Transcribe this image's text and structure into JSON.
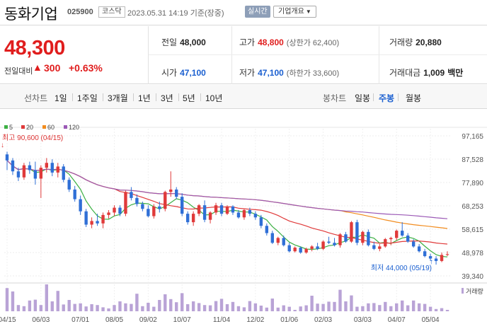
{
  "header": {
    "company_name": "동화기업",
    "code": "025900",
    "market": "코스닥",
    "datetime": "2023.05.31 14:19",
    "basis": "기준(장중)",
    "realtime_label": "실시간",
    "overview_label": "기업개요"
  },
  "quote": {
    "price": "48,300",
    "change_label": "전일대비",
    "change_arrow": "▲",
    "change_value": "300",
    "change_percent": "+0.63%",
    "prev_close_label": "전일",
    "prev_close": "48,000",
    "high_label": "고가",
    "high": "48,800",
    "upper_limit": "(상한가 62,400)",
    "volume_label": "거래량",
    "volume": "20,880",
    "open_label": "시가",
    "open": "47,100",
    "low_label": "저가",
    "low": "47,100",
    "lower_limit": "(하한가 33,600)",
    "amount_label": "거래대금",
    "amount": "1,009",
    "amount_unit": "백만"
  },
  "tabs": {
    "line_title": "선차트",
    "line_periods": [
      "1일",
      "1주일",
      "3개월",
      "1년",
      "3년",
      "5년",
      "10년"
    ],
    "candle_title": "봉차트",
    "candle_periods": [
      "일봉",
      "주봉",
      "월봉"
    ],
    "active_candle": "주봉"
  },
  "chart_data": {
    "type": "candlestick",
    "title": "",
    "legend": [
      {
        "label": "5",
        "color": "#3cb043"
      },
      {
        "label": "20",
        "color": "#e03a3a"
      },
      {
        "label": "60",
        "color": "#f28c1e"
      },
      {
        "label": "120",
        "color": "#9b59b6"
      }
    ],
    "y_ticks": [
      "97,165",
      "87,528",
      "77,890",
      "68,253",
      "58,615",
      "48,978",
      "39,340"
    ],
    "ylim": [
      39340,
      97165
    ],
    "x_ticks": [
      "04/15",
      "06/03",
      "07/01",
      "08/05",
      "09/02",
      "10/07",
      "11/04",
      "12/02",
      "01/06",
      "02/03",
      "03/03",
      "04/07",
      "05/04"
    ],
    "max_annotation": "최고 90,600 (04/15)",
    "min_annotation": "최저 44,000 (05/19)",
    "volume_label": "거래량",
    "up_color": "#e03a3a",
    "down_color": "#2f6fd6",
    "candles": [
      [
        89500,
        90600,
        83000,
        87000
      ],
      [
        87000,
        88000,
        81000,
        82500
      ],
      [
        82500,
        84000,
        78500,
        80000
      ],
      [
        80000,
        86000,
        79000,
        85000
      ],
      [
        85000,
        86500,
        81500,
        83000
      ],
      [
        83000,
        86500,
        77000,
        79500
      ],
      [
        79500,
        85000,
        71500,
        84000
      ],
      [
        84000,
        88000,
        82000,
        86000
      ],
      [
        86000,
        87500,
        80500,
        82000
      ],
      [
        82000,
        86000,
        80000,
        84500
      ],
      [
        84500,
        85500,
        78000,
        79000
      ],
      [
        79000,
        80000,
        74000,
        75000
      ],
      [
        75000,
        76500,
        70000,
        71000
      ],
      [
        71000,
        72500,
        64500,
        66000
      ],
      [
        66000,
        67000,
        59500,
        60500
      ],
      [
        60500,
        63500,
        59000,
        62000
      ],
      [
        62000,
        65000,
        60000,
        61000
      ],
      [
        61000,
        65500,
        59000,
        64500
      ],
      [
        64500,
        66500,
        63000,
        65500
      ],
      [
        65500,
        68500,
        64000,
        67500
      ],
      [
        67500,
        68500,
        64000,
        65000
      ],
      [
        65000,
        74500,
        64000,
        74000
      ],
      [
        74000,
        76000,
        70500,
        71500
      ],
      [
        71500,
        73000,
        68000,
        69000
      ],
      [
        69000,
        70000,
        66000,
        67000
      ],
      [
        67000,
        68500,
        63500,
        64000
      ],
      [
        64000,
        69000,
        63000,
        68000
      ],
      [
        68000,
        70000,
        65500,
        67000
      ],
      [
        67000,
        74500,
        66000,
        74000
      ],
      [
        74000,
        82500,
        72000,
        75000
      ],
      [
        75000,
        76000,
        71000,
        72000
      ],
      [
        72000,
        73500,
        64000,
        65000
      ],
      [
        65000,
        66000,
        60500,
        61500
      ],
      [
        61500,
        66000,
        60000,
        65000
      ],
      [
        65000,
        69000,
        64000,
        68500
      ],
      [
        68500,
        70500,
        61500,
        62500
      ],
      [
        62500,
        66000,
        61000,
        65500
      ],
      [
        65500,
        69500,
        64500,
        68500
      ],
      [
        68500,
        69500,
        64000,
        65000
      ],
      [
        65000,
        68500,
        64500,
        68000
      ],
      [
        68000,
        68500,
        64500,
        65500
      ],
      [
        65500,
        66500,
        63000,
        63500
      ],
      [
        63500,
        67000,
        62500,
        66500
      ],
      [
        66500,
        67500,
        64000,
        65000
      ],
      [
        65000,
        66000,
        62500,
        63500
      ],
      [
        63500,
        64500,
        59000,
        60000
      ],
      [
        60000,
        61000,
        56000,
        57000
      ],
      [
        57000,
        58000,
        52500,
        53000
      ],
      [
        53000,
        55500,
        52000,
        55000
      ],
      [
        55000,
        56000,
        51500,
        52000
      ],
      [
        52000,
        53000,
        49000,
        49500
      ],
      [
        49500,
        51500,
        49000,
        51000
      ],
      [
        51000,
        51500,
        48500,
        49000
      ],
      [
        49000,
        51000,
        48500,
        50500
      ],
      [
        50500,
        52000,
        49500,
        51500
      ],
      [
        51500,
        53000,
        50000,
        50500
      ],
      [
        50500,
        54000,
        50000,
        53500
      ],
      [
        53500,
        55500,
        52500,
        53000
      ],
      [
        53000,
        55000,
        51500,
        52000
      ],
      [
        52000,
        57000,
        51000,
        56500
      ],
      [
        56500,
        57500,
        53000,
        53500
      ],
      [
        53500,
        62000,
        53000,
        61500
      ],
      [
        61500,
        62500,
        52000,
        53000
      ],
      [
        53000,
        58000,
        52000,
        57500
      ],
      [
        57500,
        58500,
        51500,
        52000
      ],
      [
        52000,
        53500,
        50000,
        50500
      ],
      [
        50500,
        52500,
        49500,
        51500
      ],
      [
        51500,
        55000,
        51000,
        54500
      ],
      [
        54500,
        55500,
        52000,
        55000
      ],
      [
        55000,
        58500,
        54000,
        58000
      ],
      [
        58000,
        61500,
        55500,
        56000
      ],
      [
        56000,
        57000,
        53000,
        53500
      ],
      [
        53500,
        54500,
        51000,
        51500
      ],
      [
        51500,
        52500,
        49000,
        49500
      ],
      [
        49500,
        50500,
        47000,
        47500
      ],
      [
        47500,
        48500,
        45500,
        46500
      ],
      [
        46500,
        47500,
        44000,
        45500
      ],
      [
        45500,
        49000,
        45000,
        48000
      ],
      [
        48000,
        49500,
        47500,
        48300
      ]
    ],
    "volumes": [
      82,
      70,
      22,
      18,
      38,
      41,
      22,
      95,
      35,
      72,
      24,
      40,
      26,
      28,
      17,
      25,
      22,
      14,
      10,
      22,
      35,
      28,
      26,
      62,
      18,
      30,
      16,
      40,
      60,
      43,
      32,
      64,
      25,
      35,
      29,
      22,
      21,
      36,
      44,
      25,
      33,
      18,
      14,
      36,
      28,
      20,
      13,
      45,
      13,
      21,
      16,
      5,
      17,
      21,
      55,
      27,
      26,
      34,
      33,
      76,
      35,
      56,
      16,
      18,
      28,
      29,
      22,
      33,
      18,
      28,
      38,
      21,
      38,
      28,
      26,
      16,
      8,
      11,
      5
    ]
  }
}
